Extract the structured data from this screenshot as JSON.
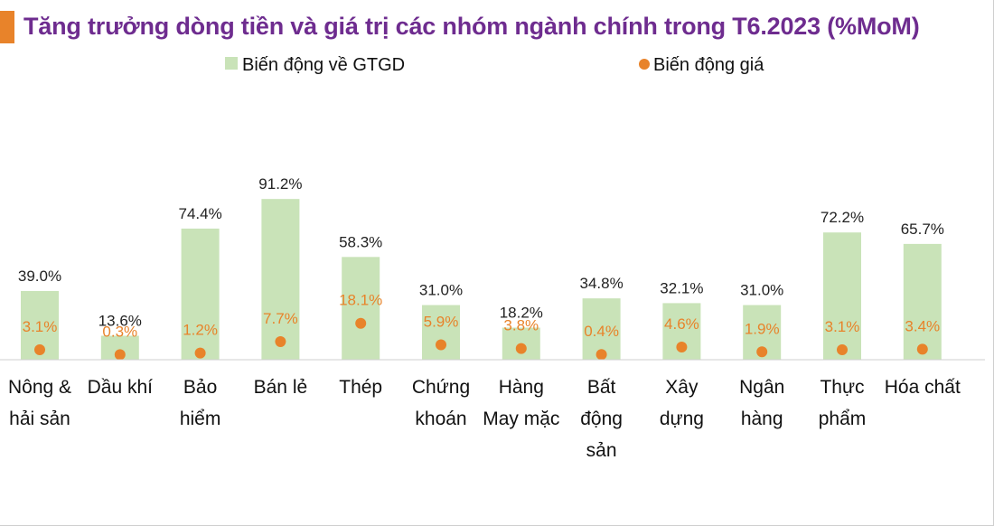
{
  "title": "Tăng trưởng dòng tiền và giá trị các nhóm ngành chính trong T6.2023 (%MoM)",
  "colors": {
    "title": "#6E2C8F",
    "accent": "#E8832A",
    "bar": "#C9E3B8",
    "dot": "#E8832A"
  },
  "chart_data": {
    "type": "bar",
    "title": "Tăng trưởng dòng tiền và giá trị các nhóm ngành chính trong T6.2023 (%MoM)",
    "categories": [
      [
        "Nông &",
        "hải sản"
      ],
      [
        "Dầu khí"
      ],
      [
        "Bảo",
        "hiểm"
      ],
      [
        "Bán lẻ"
      ],
      [
        "Thép"
      ],
      [
        "Chứng",
        "khoán"
      ],
      [
        "Hàng",
        "May mặc"
      ],
      [
        "Bất",
        "động",
        "sản"
      ],
      [
        "Xây",
        "dựng"
      ],
      [
        "Ngân",
        "hàng"
      ],
      [
        "Thực",
        "phẩm"
      ],
      [
        "Hóa chất"
      ]
    ],
    "series": [
      {
        "name": "Biến động về GTGD",
        "type": "bar",
        "values": [
          39.0,
          13.6,
          74.4,
          91.2,
          58.3,
          31.0,
          18.2,
          34.8,
          32.1,
          31.0,
          72.2,
          65.7
        ],
        "labels": [
          "39.0%",
          "13.6%",
          "74.4%",
          "91.2%",
          "58.3%",
          "31.0%",
          "18.2%",
          "34.8%",
          "32.1%",
          "31.0%",
          "72.2%",
          "65.7%"
        ]
      },
      {
        "name": "Biến động giá",
        "type": "scatter",
        "values": [
          3.1,
          0.3,
          1.2,
          7.7,
          18.1,
          5.9,
          3.8,
          0.4,
          4.6,
          1.9,
          3.1,
          3.4
        ],
        "labels": [
          "3.1%",
          "0.3%",
          "1.2%",
          "7.7%",
          "18.1%",
          "5.9%",
          "3.8%",
          "0.4%",
          "4.6%",
          "1.9%",
          "3.1%",
          "3.4%"
        ]
      }
    ],
    "legend": {
      "position": "top"
    }
  }
}
